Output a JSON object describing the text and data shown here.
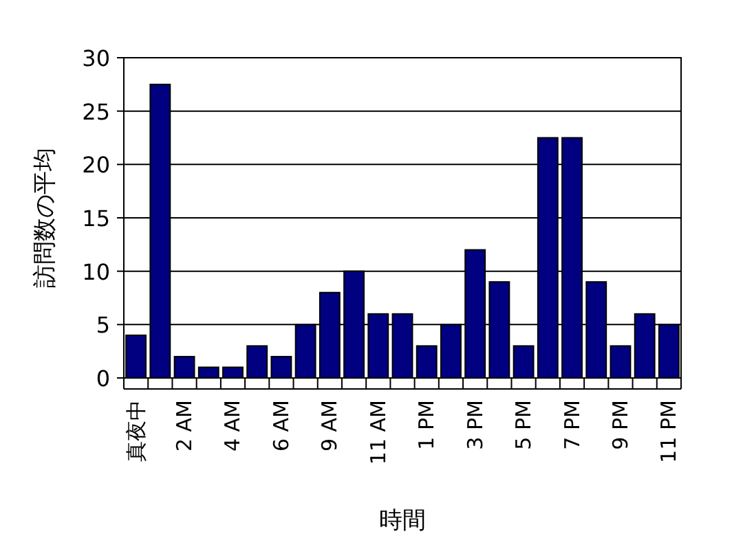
{
  "chart_data": {
    "type": "bar",
    "xlabel": "時間",
    "ylabel": "訪問数の平均",
    "categories": [
      "真夜中",
      null,
      "2 AM",
      null,
      "4 AM",
      null,
      "6 AM",
      null,
      "9 AM",
      null,
      "11 AM",
      null,
      "1 PM",
      null,
      "3 PM",
      null,
      "5 PM",
      null,
      "7 PM",
      null,
      "9 PM",
      null,
      "11 PM"
    ],
    "values": [
      4,
      27.5,
      2,
      1,
      1,
      3,
      2,
      5,
      8,
      10,
      6,
      6,
      3,
      5,
      12,
      9,
      3,
      22.5,
      22.5,
      9,
      3,
      6,
      5
    ],
    "color": "#000080",
    "ylim": [
      0,
      30
    ],
    "yticks": [
      0,
      5,
      10,
      15,
      20,
      25,
      30
    ],
    "grid": "y"
  }
}
